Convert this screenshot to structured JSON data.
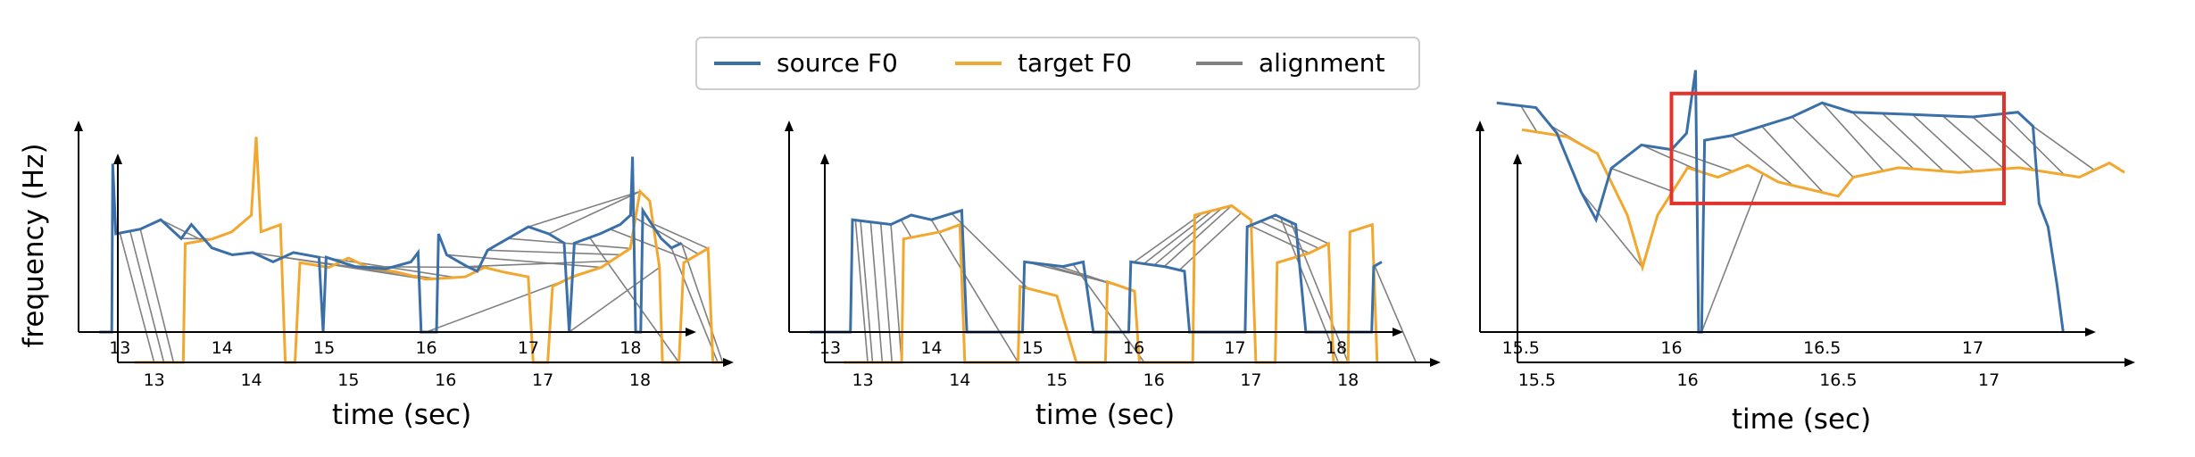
{
  "chart_data": {
    "type": "line",
    "ylabel": "frequency (Hz)",
    "colors": {
      "source": "#3a6fa8",
      "target": "#f2a72e",
      "alignment": "#808080",
      "highlight": "#e0332b"
    },
    "legend": {
      "position": "top-center",
      "entries": [
        {
          "name": "source F0",
          "color": "#3a6fa8"
        },
        {
          "name": "target F0",
          "color": "#f2a72e"
        },
        {
          "name": "alignment",
          "color": "#808080"
        }
      ]
    },
    "panels": [
      {
        "id": "panel-1",
        "xlabel": "time (sec)",
        "source_xlim": [
          12.7,
          18.6
        ],
        "target_xlim": [
          12.7,
          18.9
        ],
        "source_ticks": [
          13,
          14,
          15,
          16,
          17,
          18
        ],
        "target_ticks": [
          13,
          14,
          15,
          16,
          17,
          18
        ],
        "source_f0": [
          [
            12.8,
            0
          ],
          [
            12.92,
            0
          ],
          [
            12.93,
            0.72
          ],
          [
            12.96,
            0.42
          ],
          [
            13.2,
            0.44
          ],
          [
            13.4,
            0.48
          ],
          [
            13.6,
            0.4
          ],
          [
            13.7,
            0.46
          ],
          [
            13.9,
            0.36
          ],
          [
            14.1,
            0.33
          ],
          [
            14.3,
            0.34
          ],
          [
            14.5,
            0.3
          ],
          [
            14.7,
            0.34
          ],
          [
            14.95,
            0.32
          ],
          [
            14.99,
            0
          ],
          [
            15.02,
            0.32
          ],
          [
            15.3,
            0.28
          ],
          [
            15.6,
            0.27
          ],
          [
            15.85,
            0.3
          ],
          [
            15.92,
            0.34
          ],
          [
            15.95,
            0
          ],
          [
            16.1,
            0
          ],
          [
            16.12,
            0.42
          ],
          [
            16.2,
            0.33
          ],
          [
            16.4,
            0.28
          ],
          [
            16.5,
            0.26
          ],
          [
            16.6,
            0.35
          ],
          [
            16.8,
            0.4
          ],
          [
            17.0,
            0.45
          ],
          [
            17.2,
            0.42
          ],
          [
            17.35,
            0.38
          ],
          [
            17.4,
            0
          ],
          [
            17.45,
            0.38
          ],
          [
            17.7,
            0.42
          ],
          [
            17.9,
            0.46
          ],
          [
            18.0,
            0.5
          ],
          [
            18.02,
            0.75
          ],
          [
            18.05,
            0
          ],
          [
            18.1,
            0
          ],
          [
            18.12,
            0.52
          ],
          [
            18.3,
            0.4
          ],
          [
            18.4,
            0.36
          ],
          [
            18.5,
            0.38
          ]
        ],
        "target_f0": [
          [
            12.8,
            0
          ],
          [
            13.3,
            0
          ],
          [
            13.32,
            0.5
          ],
          [
            13.6,
            0.52
          ],
          [
            13.8,
            0.55
          ],
          [
            14.0,
            0.62
          ],
          [
            14.05,
            0.95
          ],
          [
            14.1,
            0.55
          ],
          [
            14.3,
            0.58
          ],
          [
            14.35,
            0
          ],
          [
            14.45,
            0
          ],
          [
            14.5,
            0.42
          ],
          [
            14.8,
            0.4
          ],
          [
            15.0,
            0.44
          ],
          [
            15.2,
            0.4
          ],
          [
            15.5,
            0.38
          ],
          [
            15.8,
            0.35
          ],
          [
            16.2,
            0.36
          ],
          [
            16.4,
            0.4
          ],
          [
            16.6,
            0.38
          ],
          [
            16.85,
            0.36
          ],
          [
            16.9,
            0
          ],
          [
            17.05,
            0
          ],
          [
            17.1,
            0.32
          ],
          [
            17.3,
            0.36
          ],
          [
            17.6,
            0.4
          ],
          [
            17.9,
            0.48
          ],
          [
            18.0,
            0.72
          ],
          [
            18.1,
            0.68
          ],
          [
            18.2,
            0.4
          ],
          [
            18.23,
            0
          ],
          [
            18.4,
            0
          ],
          [
            18.45,
            0.42
          ],
          [
            18.7,
            0.48
          ],
          [
            18.75,
            0
          ],
          [
            18.85,
            0
          ]
        ],
        "alignment_pairs": [
          [
            13.0,
            13.0
          ],
          [
            13.1,
            13.1
          ],
          [
            13.2,
            13.2
          ],
          [
            13.4,
            13.5
          ],
          [
            13.6,
            13.6
          ],
          [
            14.3,
            15.8
          ],
          [
            14.6,
            15.9
          ],
          [
            14.8,
            16.1
          ],
          [
            15.3,
            16.4
          ],
          [
            16.0,
            17.5
          ],
          [
            16.2,
            17.6
          ],
          [
            16.4,
            17.7
          ],
          [
            16.6,
            17.8
          ],
          [
            16.8,
            17.9
          ],
          [
            17.0,
            18.0
          ],
          [
            17.2,
            18.0
          ],
          [
            17.4,
            18.2
          ],
          [
            17.6,
            18.4
          ],
          [
            17.8,
            18.5
          ],
          [
            18.0,
            18.6
          ],
          [
            18.2,
            18.7
          ],
          [
            18.4,
            18.8
          ],
          [
            18.5,
            18.85
          ]
        ],
        "highlight_box": null
      },
      {
        "id": "panel-2",
        "xlabel": "time (sec)",
        "source_xlim": [
          12.7,
          18.6
        ],
        "target_xlim": [
          12.7,
          18.9
        ],
        "source_ticks": [
          13,
          14,
          15,
          16,
          17,
          18
        ],
        "target_ticks": [
          13,
          14,
          15,
          16,
          17,
          18
        ],
        "source_f0": [
          [
            12.8,
            0
          ],
          [
            13.2,
            0
          ],
          [
            13.22,
            0.48
          ],
          [
            13.6,
            0.46
          ],
          [
            13.8,
            0.5
          ],
          [
            14.0,
            0.48
          ],
          [
            14.3,
            0.52
          ],
          [
            14.35,
            0
          ],
          [
            14.9,
            0
          ],
          [
            14.92,
            0.3
          ],
          [
            15.3,
            0.28
          ],
          [
            15.5,
            0.3
          ],
          [
            15.6,
            0
          ],
          [
            15.95,
            0
          ],
          [
            15.97,
            0.3
          ],
          [
            16.3,
            0.28
          ],
          [
            16.5,
            0.26
          ],
          [
            16.55,
            0
          ],
          [
            17.1,
            0
          ],
          [
            17.12,
            0.45
          ],
          [
            17.4,
            0.5
          ],
          [
            17.6,
            0.46
          ],
          [
            17.7,
            0
          ],
          [
            18.35,
            0
          ],
          [
            18.37,
            0.28
          ],
          [
            18.45,
            0.3
          ]
        ],
        "target_f0": [
          [
            12.8,
            0
          ],
          [
            13.4,
            0
          ],
          [
            13.42,
            0.52
          ],
          [
            13.8,
            0.55
          ],
          [
            14.0,
            0.58
          ],
          [
            14.05,
            0
          ],
          [
            14.6,
            0
          ],
          [
            14.62,
            0.32
          ],
          [
            15.0,
            0.28
          ],
          [
            15.2,
            0
          ],
          [
            15.5,
            0
          ],
          [
            15.52,
            0.34
          ],
          [
            15.8,
            0.3
          ],
          [
            15.85,
            0
          ],
          [
            16.4,
            0
          ],
          [
            16.42,
            0.62
          ],
          [
            16.8,
            0.66
          ],
          [
            17.0,
            0.6
          ],
          [
            17.05,
            0
          ],
          [
            17.25,
            0
          ],
          [
            17.27,
            0.42
          ],
          [
            17.6,
            0.46
          ],
          [
            17.8,
            0.5
          ],
          [
            17.85,
            0
          ],
          [
            18.0,
            0
          ],
          [
            18.02,
            0.55
          ],
          [
            18.25,
            0.58
          ],
          [
            18.3,
            0
          ]
        ],
        "alignment_pairs": [
          [
            13.25,
            13.05
          ],
          [
            13.3,
            13.1
          ],
          [
            13.4,
            13.2
          ],
          [
            13.5,
            13.3
          ],
          [
            13.6,
            13.4
          ],
          [
            13.7,
            13.5
          ],
          [
            14.0,
            14.6
          ],
          [
            14.2,
            14.7
          ],
          [
            14.95,
            15.6
          ],
          [
            15.1,
            15.7
          ],
          [
            15.25,
            15.8
          ],
          [
            15.4,
            15.9
          ],
          [
            16.0,
            16.5
          ],
          [
            16.1,
            16.6
          ],
          [
            16.2,
            16.7
          ],
          [
            16.3,
            16.8
          ],
          [
            16.45,
            16.9
          ],
          [
            17.15,
            17.6
          ],
          [
            17.25,
            17.7
          ],
          [
            17.35,
            17.8
          ],
          [
            17.45,
            17.9
          ],
          [
            17.55,
            18.0
          ],
          [
            18.38,
            18.7
          ]
        ],
        "highlight_box": null
      },
      {
        "id": "panel-3",
        "xlabel": "time (sec)",
        "source_xlim": [
          15.4,
          17.4
        ],
        "target_xlim": [
          15.45,
          17.45
        ],
        "source_ticks": [
          15.5,
          16.0,
          16.5,
          17.0
        ],
        "target_ticks": [
          15.5,
          16.0,
          16.5,
          17.0
        ],
        "source_f0": [
          [
            15.42,
            0.98
          ],
          [
            15.55,
            0.96
          ],
          [
            15.62,
            0.85
          ],
          [
            15.7,
            0.6
          ],
          [
            15.75,
            0.48
          ],
          [
            15.8,
            0.7
          ],
          [
            15.9,
            0.8
          ],
          [
            16.0,
            0.78
          ],
          [
            16.05,
            0.85
          ],
          [
            16.08,
            1.12
          ],
          [
            16.09,
            0
          ],
          [
            16.1,
            0
          ],
          [
            16.11,
            0.82
          ],
          [
            16.2,
            0.84
          ],
          [
            16.3,
            0.88
          ],
          [
            16.4,
            0.92
          ],
          [
            16.5,
            0.98
          ],
          [
            16.6,
            0.94
          ],
          [
            16.8,
            0.93
          ],
          [
            17.0,
            0.92
          ],
          [
            17.15,
            0.94
          ],
          [
            17.2,
            0.88
          ],
          [
            17.22,
            0.55
          ],
          [
            17.25,
            0.45
          ],
          [
            17.28,
            0.2
          ],
          [
            17.3,
            0
          ]
        ],
        "target_f0": [
          [
            15.45,
            0.98
          ],
          [
            15.6,
            0.95
          ],
          [
            15.7,
            0.88
          ],
          [
            15.8,
            0.62
          ],
          [
            15.85,
            0.4
          ],
          [
            15.9,
            0.62
          ],
          [
            16.0,
            0.82
          ],
          [
            16.1,
            0.78
          ],
          [
            16.2,
            0.83
          ],
          [
            16.3,
            0.76
          ],
          [
            16.5,
            0.7
          ],
          [
            16.55,
            0.78
          ],
          [
            16.7,
            0.82
          ],
          [
            16.9,
            0.8
          ],
          [
            17.1,
            0.82
          ],
          [
            17.3,
            0.78
          ],
          [
            17.4,
            0.84
          ],
          [
            17.45,
            0.8
          ]
        ],
        "alignment_pairs": [
          [
            15.5,
            15.5
          ],
          [
            15.6,
            15.7
          ],
          [
            15.7,
            15.85
          ],
          [
            15.8,
            15.95
          ],
          [
            15.9,
            16.05
          ],
          [
            16.0,
            16.15
          ],
          [
            16.1,
            16.25
          ],
          [
            16.2,
            16.35
          ],
          [
            16.3,
            16.45
          ],
          [
            16.4,
            16.55
          ],
          [
            16.5,
            16.65
          ],
          [
            16.6,
            16.75
          ],
          [
            16.7,
            16.85
          ],
          [
            16.8,
            16.95
          ],
          [
            16.9,
            17.05
          ],
          [
            17.0,
            17.15
          ],
          [
            17.1,
            17.25
          ],
          [
            17.2,
            17.35
          ]
        ],
        "highlight_box": {
          "x0": 16.0,
          "x1": 17.05,
          "y0": 0.55,
          "y1": 1.02
        }
      }
    ]
  }
}
